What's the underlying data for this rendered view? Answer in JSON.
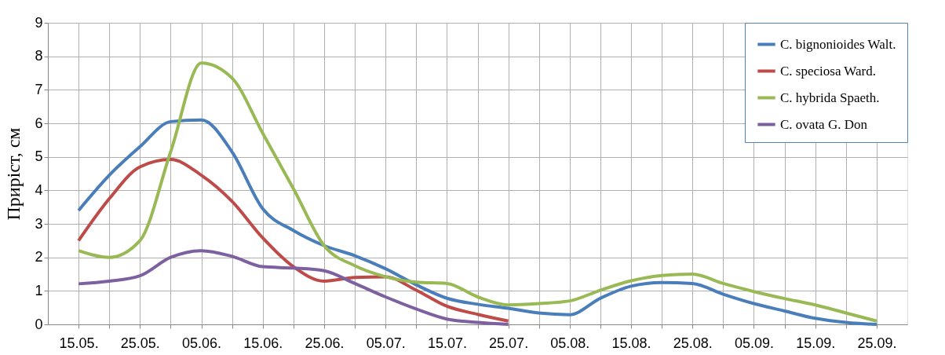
{
  "chart_data": {
    "type": "line",
    "ylabel": "Приріст, см",
    "categories": [
      "15.05.",
      null,
      "25.05.",
      null,
      "05.06.",
      null,
      "15.06.",
      null,
      "25.06.",
      null,
      "05.07.",
      null,
      "15.07.",
      null,
      "25.07.",
      null,
      "05.08.",
      null,
      "15.08.",
      null,
      "25.08.",
      null,
      "05.09.",
      null,
      "15.09.",
      null,
      "25.09."
    ],
    "series": [
      {
        "name": "C. bignonioides Walt.",
        "color": "#4a7ebb",
        "values": [
          3.4,
          4.45,
          5.3,
          6.05,
          6.1,
          5.15,
          3.45,
          2.8,
          2.35,
          2.05,
          1.66,
          1.18,
          0.78,
          0.6,
          0.48,
          0.34,
          0.29,
          0.78,
          1.14,
          1.25,
          1.22,
          0.9,
          0.62,
          0.4,
          0.18,
          0.06,
          0
        ]
      },
      {
        "name": "C. speciosa Ward.",
        "color": "#be4b48",
        "values": [
          2.5,
          3.75,
          4.7,
          4.92,
          4.45,
          3.67,
          2.58,
          1.72,
          1.29,
          1.4,
          1.42,
          1.02,
          0.54,
          0.3,
          0.1,
          null,
          null,
          null,
          null,
          null,
          null,
          null,
          null,
          null,
          null,
          null,
          null
        ]
      },
      {
        "name": "C. hybrida Spaeth.",
        "color": "#98b954",
        "values": [
          2.2,
          2.0,
          2.5,
          5.15,
          7.8,
          7.35,
          5.7,
          4.05,
          2.35,
          1.75,
          1.42,
          1.26,
          1.22,
          0.82,
          0.58,
          0.62,
          0.7,
          1.02,
          1.3,
          1.46,
          1.5,
          1.22,
          0.98,
          0.77,
          0.58,
          0.34,
          0.1
        ]
      },
      {
        "name": "C. ovata G. Don",
        "color": "#7d60a0",
        "values": [
          1.21,
          1.29,
          1.45,
          2.0,
          2.2,
          2.03,
          1.72,
          1.68,
          1.6,
          1.22,
          0.82,
          0.46,
          0.16,
          0.06,
          0,
          null,
          null,
          null,
          null,
          null,
          null,
          null,
          null,
          null,
          null,
          null,
          null
        ]
      }
    ],
    "ylim": [
      0,
      9
    ],
    "yticks": [
      0,
      1,
      2,
      3,
      4,
      5,
      6,
      7,
      8,
      9
    ],
    "grid": true,
    "legend": "top right",
    "marker": "none",
    "line_style": "solid"
  }
}
